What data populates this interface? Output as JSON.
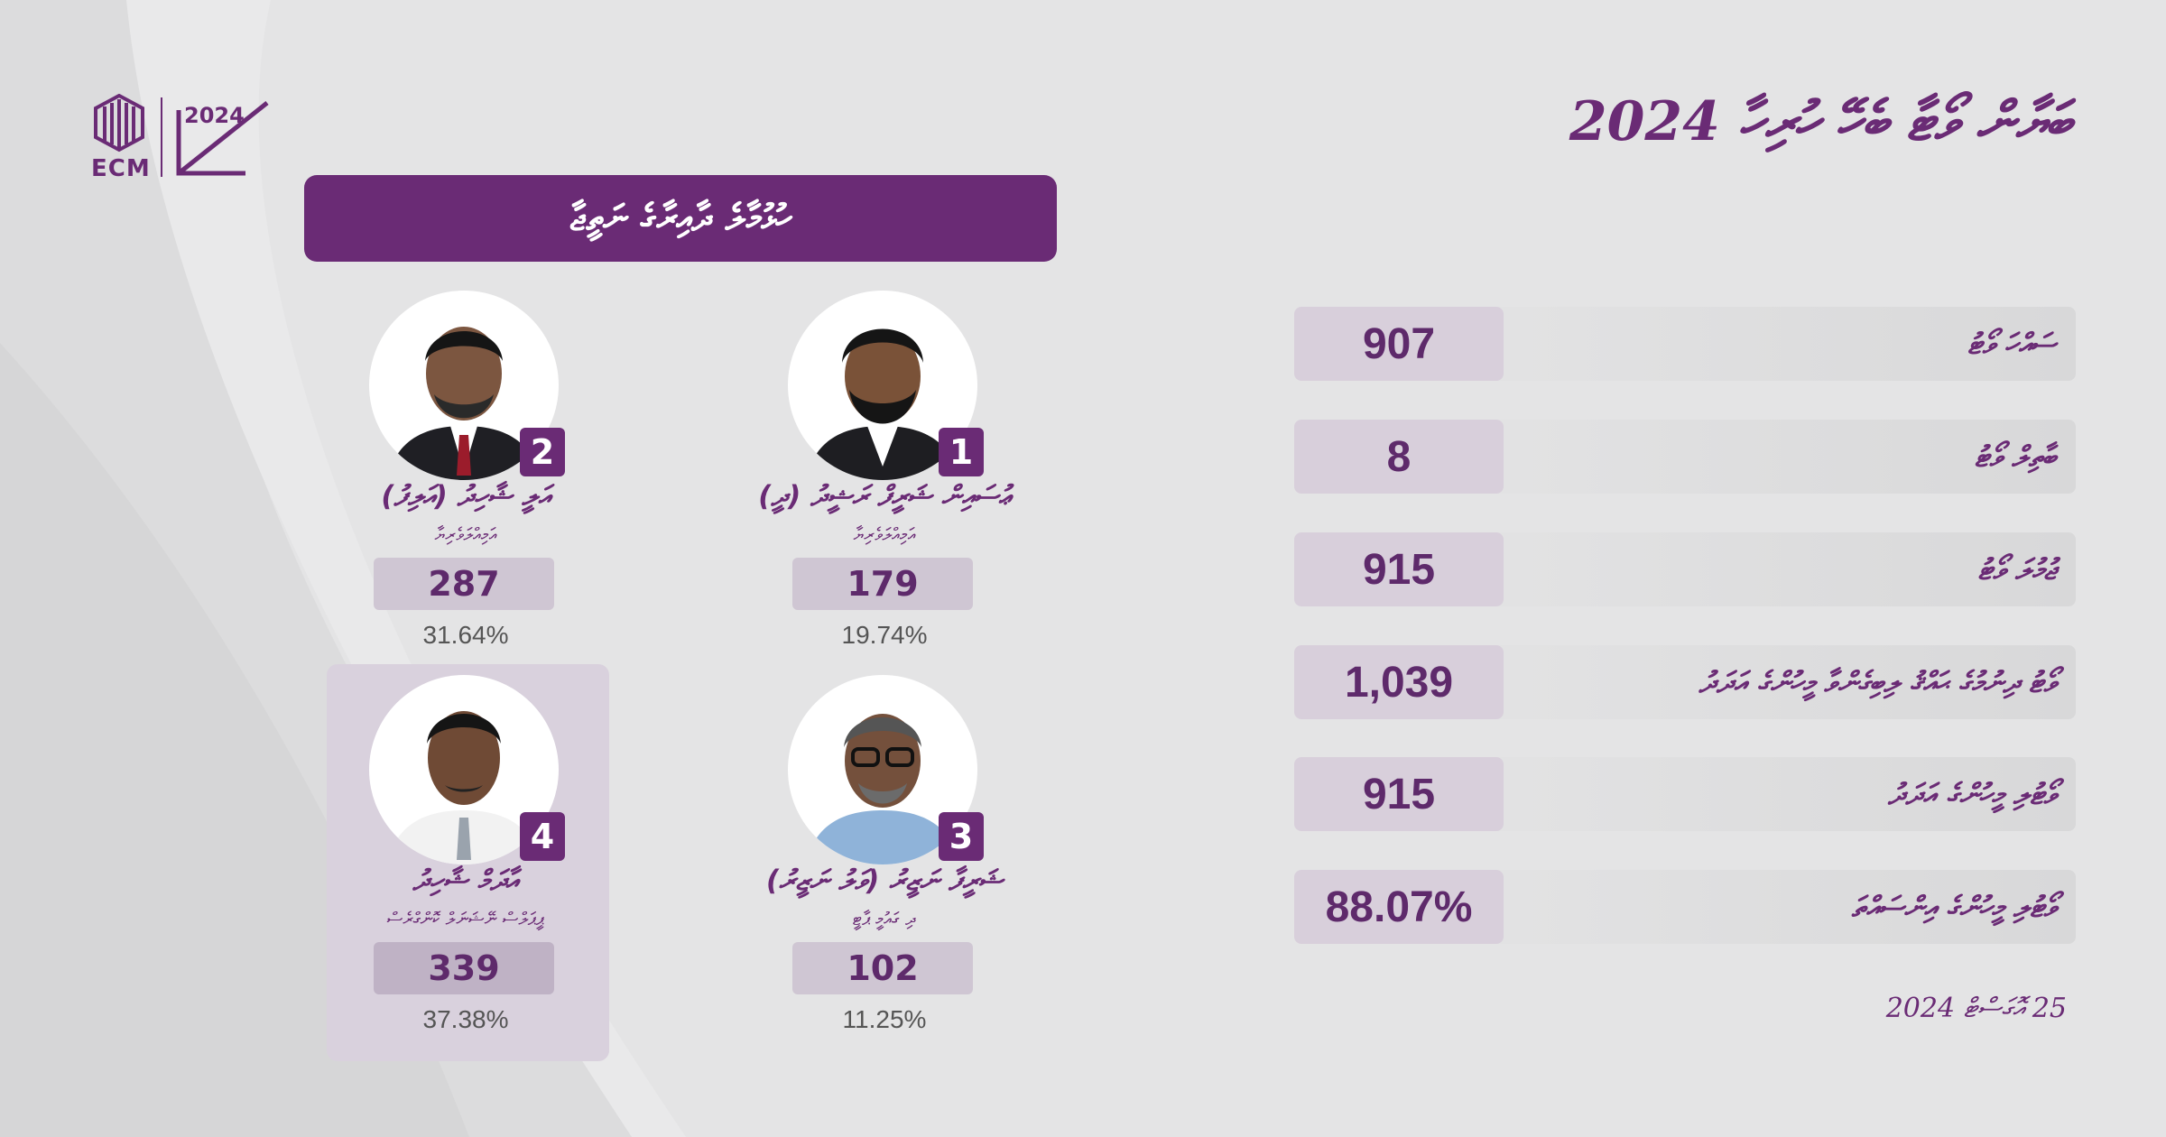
{
  "title": "ބަޔާން ވޯޓާ ބެހޭ ހުރިހާ 2024",
  "subtitle": "ހުޅުމާލެ ދާއިރާގެ ނަތީޖާ",
  "logo": {
    "ecm_text": "ECM",
    "icon": "ecm-logo-icon",
    "vote_icon": "ballot-check-icon"
  },
  "colors": {
    "primary": "#6a2b75",
    "value_box": "#d8cfdb",
    "background": "#e4e4e5"
  },
  "candidates": [
    {
      "number": "1",
      "name": "ޢުސައިން ޝަރީފް ރަޝީދު (ދީ)",
      "party": "އަމިއްލަވެރިޔާ",
      "votes": "179",
      "percent": "19.74%"
    },
    {
      "number": "2",
      "name": "އަލީ ޝާހިދު (އަލިފު)",
      "party": "އަމިއްލަވެރިޔާ",
      "votes": "287",
      "percent": "31.64%"
    },
    {
      "number": "3",
      "name": "ޝަރީފާ ނަޒީރު (ވަލު ނަޒީރު)",
      "party": "ދި ގައުމީ ޕާޓީ",
      "votes": "102",
      "percent": "11.25%"
    },
    {
      "number": "4",
      "name": "އާދަމް ޝާހިދު",
      "party": "ޕީޕަލްސް ނޭޝަނަލް ކޮންގްރެސް",
      "votes": "339",
      "percent": "37.38%",
      "winner": true
    }
  ],
  "stats": [
    {
      "label": "ސައްހަ ވޯޓު",
      "value": "907"
    },
    {
      "label": "ބާތިލް ވޯޓު",
      "value": "8"
    },
    {
      "label": "ޖުމުލަ ވޯޓު",
      "value": "915"
    },
    {
      "label": "ވޯޓު ދިނުމުގެ ޙައްޤު ލިބިގެންވާ މީހުންގެ އަދަދު",
      "value": "1,039"
    },
    {
      "label": "ވޯޓުލި މީހުންގެ އަދަދު",
      "value": "915"
    },
    {
      "label": "ވޯޓުލި މީހުންގެ އިންސައްތަ",
      "value": "88.07%"
    }
  ],
  "date": "25 އޮގަސްޓް 2024"
}
